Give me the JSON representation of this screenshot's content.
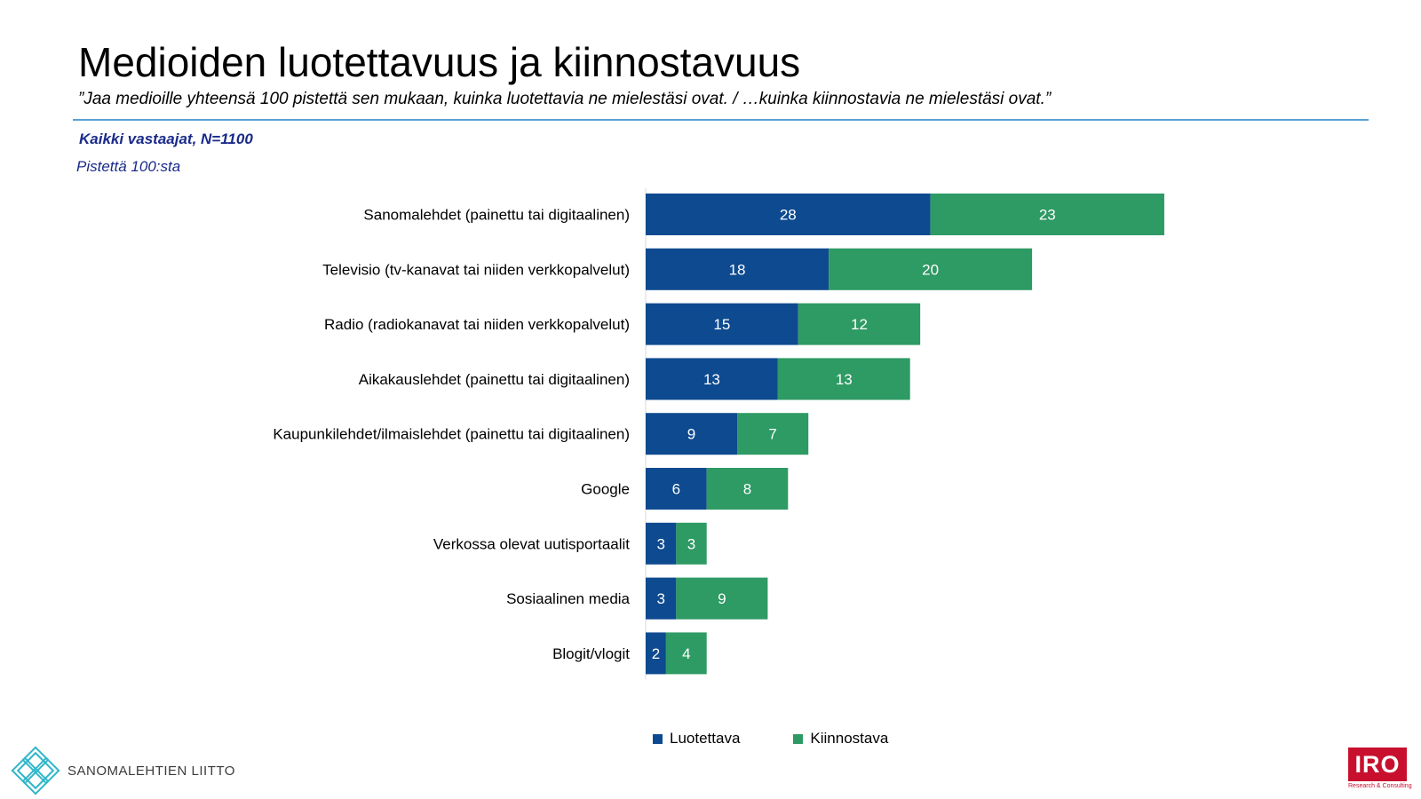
{
  "header": {
    "title": "Medioiden luotettavuus ja kiinnostavuus",
    "subtitle": "”Jaa medioille yhteensä 100 pistettä sen mukaan, kuinka luotettavia ne mielestäsi ovat. / …kuinka kiinnostavia ne mielestäsi ovat.”",
    "base_note": "Kaikki vastaajat, N=1100",
    "unit_note": "Pistettä 100:sta"
  },
  "colors": {
    "luotettava": "#0e4a8f",
    "kiinnostava": "#2e9a64",
    "divider": "#5aa0d6",
    "note_text": "#1a2a8a",
    "iro_red": "#c8102e",
    "logo_teal": "#2fb6c9"
  },
  "chart_data": {
    "type": "bar",
    "orientation": "horizontal",
    "stacked": true,
    "categories": [
      "Sanomalehdet (painettu tai digitaalinen)",
      "Televisio (tv-kanavat tai niiden verkkopalvelut)",
      "Radio (radiokanavat tai niiden verkkopalvelut)",
      "Aikakauslehdet (painettu tai digitaalinen)",
      "Kaupunkilehdet/ilmaislehdet (painettu tai digitaalinen)",
      "Google",
      "Verkossa olevat uutisportaalit",
      "Sosiaalinen media",
      "Blogit/vlogit"
    ],
    "series": [
      {
        "name": "Luotettava",
        "values": [
          28,
          18,
          15,
          13,
          9,
          6,
          3,
          3,
          2
        ]
      },
      {
        "name": "Kiinnostava",
        "values": [
          23,
          20,
          12,
          13,
          7,
          8,
          3,
          9,
          4
        ]
      }
    ],
    "data_labels": true,
    "legend_position": "bottom",
    "grid": false
  },
  "legend": {
    "items": [
      "Luotettava",
      "Kiinnostava"
    ]
  },
  "logos": {
    "left_text": "SANOMALEHTIEN LIITTO",
    "right_text": "IRO",
    "right_subtext": "Research & Consulting"
  }
}
